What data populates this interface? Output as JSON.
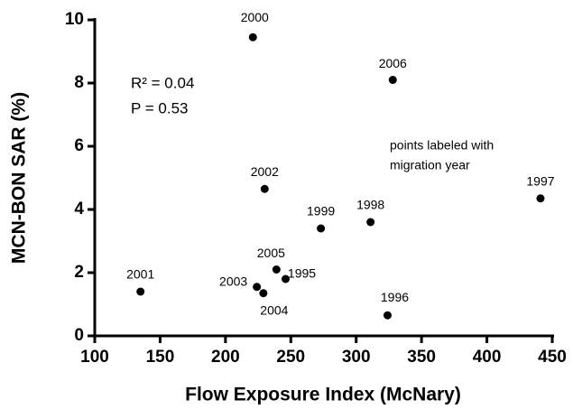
{
  "chart_data": {
    "type": "scatter",
    "xlabel": "Flow Exposure Index (McNary)",
    "ylabel": "MCN-BON SAR (%)",
    "x": [
      221,
      328,
      230,
      273,
      311,
      441,
      135,
      239,
      246,
      224,
      229,
      324
    ],
    "values": [
      9.45,
      8.1,
      4.65,
      3.4,
      3.6,
      4.35,
      1.4,
      2.1,
      1.8,
      1.55,
      1.35,
      0.65
    ],
    "labels": [
      "2000",
      "2006",
      "2002",
      "1999",
      "1998",
      "1997",
      "2001",
      "2005",
      "1995",
      "2003",
      "2004",
      "1996"
    ],
    "color": "#000000",
    "xlim": [
      100,
      450
    ],
    "xticks": [
      100,
      150,
      200,
      250,
      300,
      350,
      400,
      450
    ],
    "ylim": [
      0,
      10
    ],
    "yticks": [
      0,
      2,
      4,
      6,
      8,
      10
    ],
    "annotations": [
      "R² = 0.04",
      "P = 0.53"
    ],
    "note": [
      "points labeled with",
      "migration year"
    ]
  }
}
